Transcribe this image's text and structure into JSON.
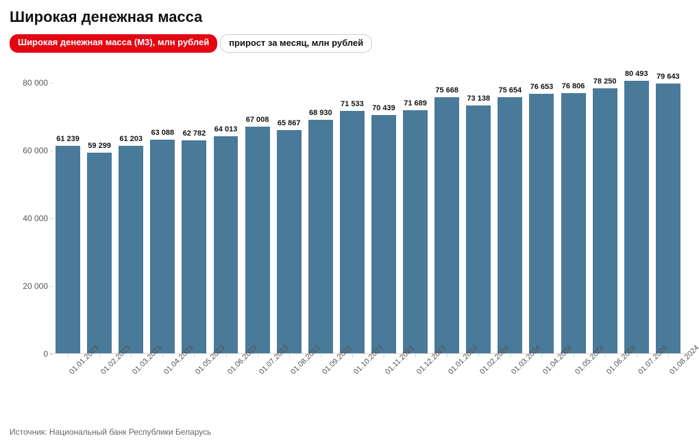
{
  "title": "Широкая денежная масса",
  "legend": {
    "active_label": "Широкая денежная масса (M3), млн рублей",
    "inactive_label": "прирост за месяц, млн рублей"
  },
  "chart": {
    "type": "bar",
    "bar_color": "#4a7a99",
    "background_color": "#ffffff",
    "axis_color": "#d6d6d6",
    "title_fontsize": 22,
    "label_fontsize": 12,
    "value_label_fontsize": 11,
    "ylim": [
      0,
      85000
    ],
    "yticks": [
      0,
      20000,
      40000,
      60000,
      80000
    ],
    "ytick_labels": [
      "0",
      "20 000",
      "40 000",
      "60 000",
      "80 000"
    ],
    "categories": [
      "01.01.2023",
      "01.02.2023",
      "01.03.2023",
      "01.04.2023",
      "01.05.2023",
      "01.06.2023",
      "01.07.2023",
      "01.08.2023",
      "01.09.2023",
      "01.10.2023",
      "01.11.2023",
      "01.12.2023",
      "01.01.2024",
      "01.02.2024",
      "01.03.2024",
      "01.04.2024",
      "01.05.2024",
      "01.06.2024",
      "01.07.2024",
      "01.08.2024"
    ],
    "values": [
      61239,
      59299,
      61203,
      63088,
      62782,
      64013,
      67008,
      65867,
      68930,
      71533,
      70439,
      71689,
      75668,
      73138,
      75654,
      76653,
      76806,
      78250,
      80493,
      79643
    ],
    "value_labels": [
      "61 239",
      "59 299",
      "61 203",
      "63 088",
      "62 782",
      "64 013",
      "67 008",
      "65 867",
      "68 930",
      "71 533",
      "70 439",
      "71 689",
      "75 668",
      "73 138",
      "75 654",
      "76 653",
      "76 806",
      "78 250",
      "80 493",
      "79 643"
    ],
    "bar_width_ratio": 0.78
  },
  "source": "Источник: Национальный банк Республики Беларусь"
}
